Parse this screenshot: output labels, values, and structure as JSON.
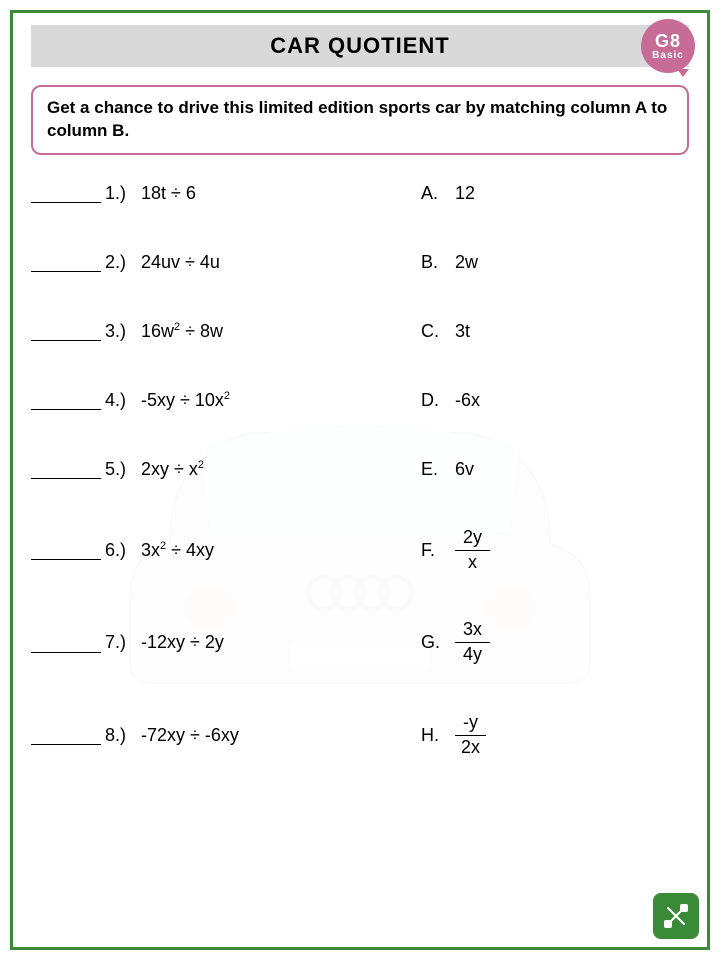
{
  "title": "CAR QUOTIENT",
  "grade": {
    "code": "G8",
    "level": "Basic"
  },
  "instructions": "Get a chance to drive this limited edition sports car by matching column A to column B.",
  "colors": {
    "border": "#3a8a3a",
    "title_bar_bg": "#d9d9d9",
    "badge_bg": "#c76b97",
    "instruction_border": "#c76b97",
    "icon_bg": "#3a8a3a"
  },
  "typography": {
    "title_fontsize": 22,
    "instruction_fontsize": 17,
    "row_fontsize": 18
  },
  "columnA": [
    {
      "num": "1.)",
      "expr": "18t ÷ 6"
    },
    {
      "num": "2.)",
      "expr": "24uv ÷ 4u"
    },
    {
      "num": "3.)",
      "expr_html": "16w<sup>2</sup> ÷ 8w"
    },
    {
      "num": "4.)",
      "expr_html": "-5xy ÷ 10x<sup>2</sup>"
    },
    {
      "num": "5.)",
      "expr_html": "2xy ÷ x<sup>2</sup>"
    },
    {
      "num": "6.)",
      "expr_html": "3x<sup>2</sup> ÷ 4xy"
    },
    {
      "num": "7.)",
      "expr": "-12xy ÷ 2y"
    },
    {
      "num": "8.)",
      "expr": "-72xy ÷ -6xy"
    }
  ],
  "columnB": [
    {
      "letter": "A.",
      "ans": "12"
    },
    {
      "letter": "B.",
      "ans": "2w"
    },
    {
      "letter": "C.",
      "ans": "3t"
    },
    {
      "letter": "D.",
      "ans": "-6x"
    },
    {
      "letter": "E.",
      "ans": "6v"
    },
    {
      "letter": "F.",
      "frac": {
        "top": "2y",
        "bot": "x"
      }
    },
    {
      "letter": "G.",
      "frac": {
        "top": "3x",
        "bot": "4y"
      }
    },
    {
      "letter": "H.",
      "frac": {
        "top": "-y",
        "bot": "2x"
      }
    }
  ]
}
